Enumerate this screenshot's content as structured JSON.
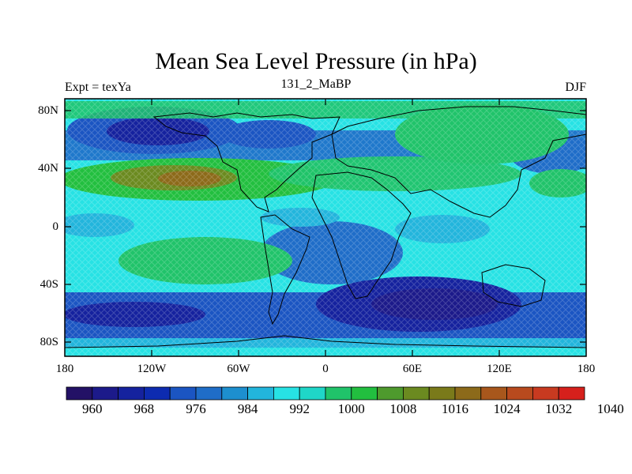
{
  "title": "Mean Sea Level Pressure (in hPa)",
  "subtitle_left": "Expt = texYa",
  "subtitle_center": "131_2_MaBP",
  "subtitle_right": "DJF",
  "y_ticks": [
    "80N",
    "40N",
    "0",
    "40S",
    "80S"
  ],
  "x_ticks": [
    "180",
    "120W",
    "60W",
    "0",
    "60E",
    "120E",
    "180"
  ],
  "colorbar": {
    "colors": [
      "#231166",
      "#1c1a8a",
      "#15229e",
      "#0d2bb0",
      "#1b55c2",
      "#1f6dc8",
      "#1d8fcf",
      "#22b5dc",
      "#27e2e4",
      "#1fd6c8",
      "#20c36a",
      "#22bf3f",
      "#4e9a2d",
      "#6b8a20",
      "#7a7a1a",
      "#8c6a1a",
      "#a8571c",
      "#b84a1e",
      "#c83a20",
      "#d6201c"
    ],
    "labels": [
      "960",
      "968",
      "976",
      "984",
      "992",
      "1000",
      "1008",
      "1016",
      "1024",
      "1032",
      "1040"
    ]
  },
  "chart_data": {
    "type": "heatmap",
    "title": "Mean Sea Level Pressure (in hPa)",
    "subtitle": "131_2_MaBP",
    "xlim": [
      -180,
      180
    ],
    "ylim": [
      -90,
      90
    ],
    "x_ticks": [
      "180",
      "120W",
      "60W",
      "0",
      "60E",
      "120E",
      "180"
    ],
    "y_ticks": [
      "80N",
      "40N",
      "0",
      "40S",
      "80S"
    ],
    "levels": [
      960,
      968,
      976,
      984,
      992,
      1000,
      1008,
      1016,
      1024,
      1032,
      1040
    ]
  }
}
